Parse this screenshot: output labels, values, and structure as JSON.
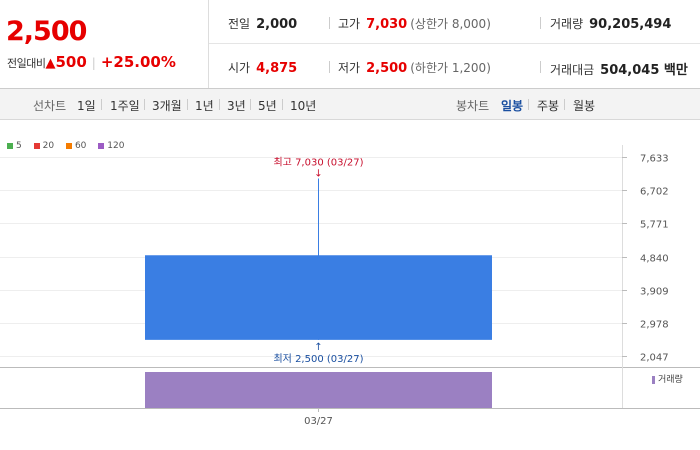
{
  "quote": {
    "current_price": "2,500",
    "change_label": "전일대비",
    "change_arrow": "▲",
    "change_amount": "500",
    "change_rate": "+25.00%",
    "prev_close_label": "전일",
    "prev_close": "2,000",
    "high_label": "고가",
    "high": "7,030",
    "upper_limit": "(상한가 8,000)",
    "volume_label": "거래량",
    "volume": "90,205,494",
    "open_label": "시가",
    "open": "4,875",
    "low_label": "저가",
    "low": "2,500",
    "lower_limit": "(하한가 1,200)",
    "turnover_label": "거래대금",
    "turnover": "504,045 백만"
  },
  "toolbar": {
    "line_chart_label": "선차트",
    "line_periods": [
      "1일",
      "1주일",
      "3개월",
      "1년",
      "3년",
      "5년",
      "10년"
    ],
    "candle_chart_label": "봉차트",
    "candle_periods": [
      "일봉",
      "주봉",
      "월봉"
    ],
    "active_candle": "일봉"
  },
  "colors": {
    "up": "#e60000",
    "candle_body": "#3a7ee3",
    "volume_bar": "#9b80c2",
    "ma5": "#4caf50",
    "ma20": "#e53935",
    "ma60": "#f57c00",
    "ma120": "#9c5cc4"
  },
  "chart_data": {
    "type": "candlestick",
    "legend": [
      {
        "name": "5",
        "color": "#4caf50"
      },
      {
        "name": "20",
        "color": "#e53935"
      },
      {
        "name": "60",
        "color": "#f57c00"
      },
      {
        "name": "120",
        "color": "#9c5cc4"
      }
    ],
    "y_ticks": [
      7633,
      6702,
      5771,
      4840,
      3909,
      2978,
      2047
    ],
    "y_tick_labels": [
      "7,633",
      "6,702",
      "5,771",
      "4,840",
      "3,909",
      "2,978",
      "2,047"
    ],
    "ylim": [
      2047,
      7633
    ],
    "x_labels": [
      "03/27"
    ],
    "candles": [
      {
        "date": "03/27",
        "open": 4875,
        "high": 7030,
        "low": 2500,
        "close": 2500
      }
    ],
    "annotations": {
      "high_text": "최고 7,030 (03/27)",
      "high_arrow": "↓",
      "low_text": "최저 2,500 (03/27)",
      "low_arrow": "↑"
    },
    "volume": {
      "legend": "거래량",
      "values": [
        90205494
      ],
      "ymax": 90205494
    }
  }
}
